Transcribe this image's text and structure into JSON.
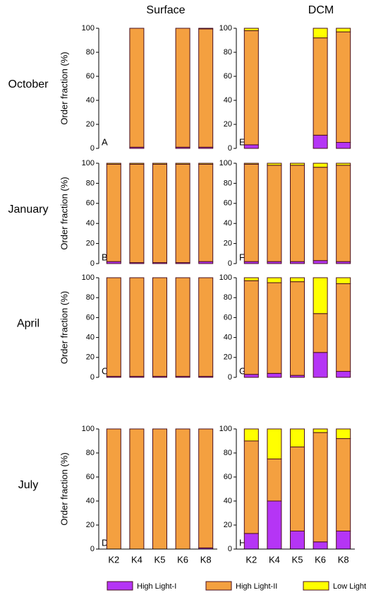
{
  "column_titles": [
    "Surface",
    "DCM"
  ],
  "row_titles": [
    "October",
    "January",
    "April",
    "July"
  ],
  "categories": [
    "K2",
    "K4",
    "K5",
    "K6",
    "K8"
  ],
  "legend": [
    {
      "name": "High Light-I",
      "color": "#b535f5"
    },
    {
      "name": "High Light-II",
      "color": "#f4a040"
    },
    {
      "name": "Low Light",
      "color": "#ffff00"
    }
  ],
  "chart_data": [
    {
      "type": "bar",
      "stacked": true,
      "panel_label": "A",
      "ylabel": "Order fraction (%)",
      "ylim": [
        0,
        100
      ],
      "yticks": [
        0,
        20,
        40,
        60,
        80,
        100
      ],
      "series": [
        {
          "values": [
            null,
            1,
            null,
            1,
            1
          ]
        },
        {
          "values": [
            null,
            99,
            null,
            99,
            98.5
          ]
        },
        {
          "values": [
            null,
            0,
            null,
            0,
            0.5
          ]
        }
      ]
    },
    {
      "type": "bar",
      "stacked": true,
      "panel_label": "E",
      "ylim": [
        0,
        100
      ],
      "yticks": [
        0,
        20,
        40,
        60,
        80,
        100
      ],
      "series": [
        {
          "values": [
            3,
            null,
            null,
            11,
            5
          ]
        },
        {
          "values": [
            95,
            null,
            null,
            81,
            92
          ]
        },
        {
          "values": [
            2,
            null,
            null,
            8,
            3
          ]
        }
      ]
    },
    {
      "type": "bar",
      "stacked": true,
      "panel_label": "B",
      "ylabel": "Order fraction (%)",
      "ylim": [
        0,
        100
      ],
      "yticks": [
        0,
        20,
        40,
        60,
        80,
        100
      ],
      "series": [
        {
          "values": [
            2,
            1,
            1,
            1,
            2
          ]
        },
        {
          "values": [
            97,
            98,
            98,
            98,
            97
          ]
        },
        {
          "values": [
            1,
            1,
            1,
            1,
            1
          ]
        }
      ]
    },
    {
      "type": "bar",
      "stacked": true,
      "panel_label": "F",
      "ylim": [
        0,
        100
      ],
      "yticks": [
        0,
        20,
        40,
        60,
        80,
        100
      ],
      "series": [
        {
          "values": [
            2,
            2,
            2,
            3,
            2
          ]
        },
        {
          "values": [
            97,
            96,
            96,
            93,
            96
          ]
        },
        {
          "values": [
            1,
            2,
            2,
            4,
            2
          ]
        }
      ]
    },
    {
      "type": "bar",
      "stacked": true,
      "panel_label": "C",
      "ylabel": "Order fraction (%)",
      "ylim": [
        0,
        100
      ],
      "yticks": [
        0,
        20,
        40,
        60,
        80,
        100
      ],
      "series": [
        {
          "values": [
            1,
            1,
            1,
            1,
            1
          ]
        },
        {
          "values": [
            99,
            99,
            99,
            99,
            99
          ]
        },
        {
          "values": [
            0,
            0,
            0,
            0,
            0
          ]
        }
      ]
    },
    {
      "type": "bar",
      "stacked": true,
      "panel_label": "G",
      "ylim": [
        0,
        100
      ],
      "yticks": [
        0,
        20,
        40,
        60,
        80,
        100
      ],
      "series": [
        {
          "values": [
            3,
            4,
            2,
            25,
            6
          ]
        },
        {
          "values": [
            94,
            91,
            94,
            39,
            88
          ]
        },
        {
          "values": [
            3,
            5,
            4,
            36,
            6
          ]
        }
      ]
    },
    {
      "type": "bar",
      "stacked": true,
      "panel_label": "D",
      "ylabel": "Order fraction (%)",
      "ylim": [
        0,
        100
      ],
      "yticks": [
        0,
        20,
        40,
        60,
        80,
        100
      ],
      "series": [
        {
          "values": [
            0,
            0,
            0,
            0,
            1
          ]
        },
        {
          "values": [
            100,
            100,
            100,
            100,
            99
          ]
        },
        {
          "values": [
            0,
            0,
            0,
            0,
            0
          ]
        }
      ]
    },
    {
      "type": "bar",
      "stacked": true,
      "panel_label": "H",
      "ylim": [
        0,
        100
      ],
      "yticks": [
        0,
        20,
        40,
        60,
        80,
        100
      ],
      "series": [
        {
          "values": [
            13,
            40,
            15,
            6,
            15
          ]
        },
        {
          "values": [
            77,
            35,
            70,
            91,
            77
          ]
        },
        {
          "values": [
            10,
            25,
            15,
            3,
            8
          ]
        }
      ]
    }
  ]
}
